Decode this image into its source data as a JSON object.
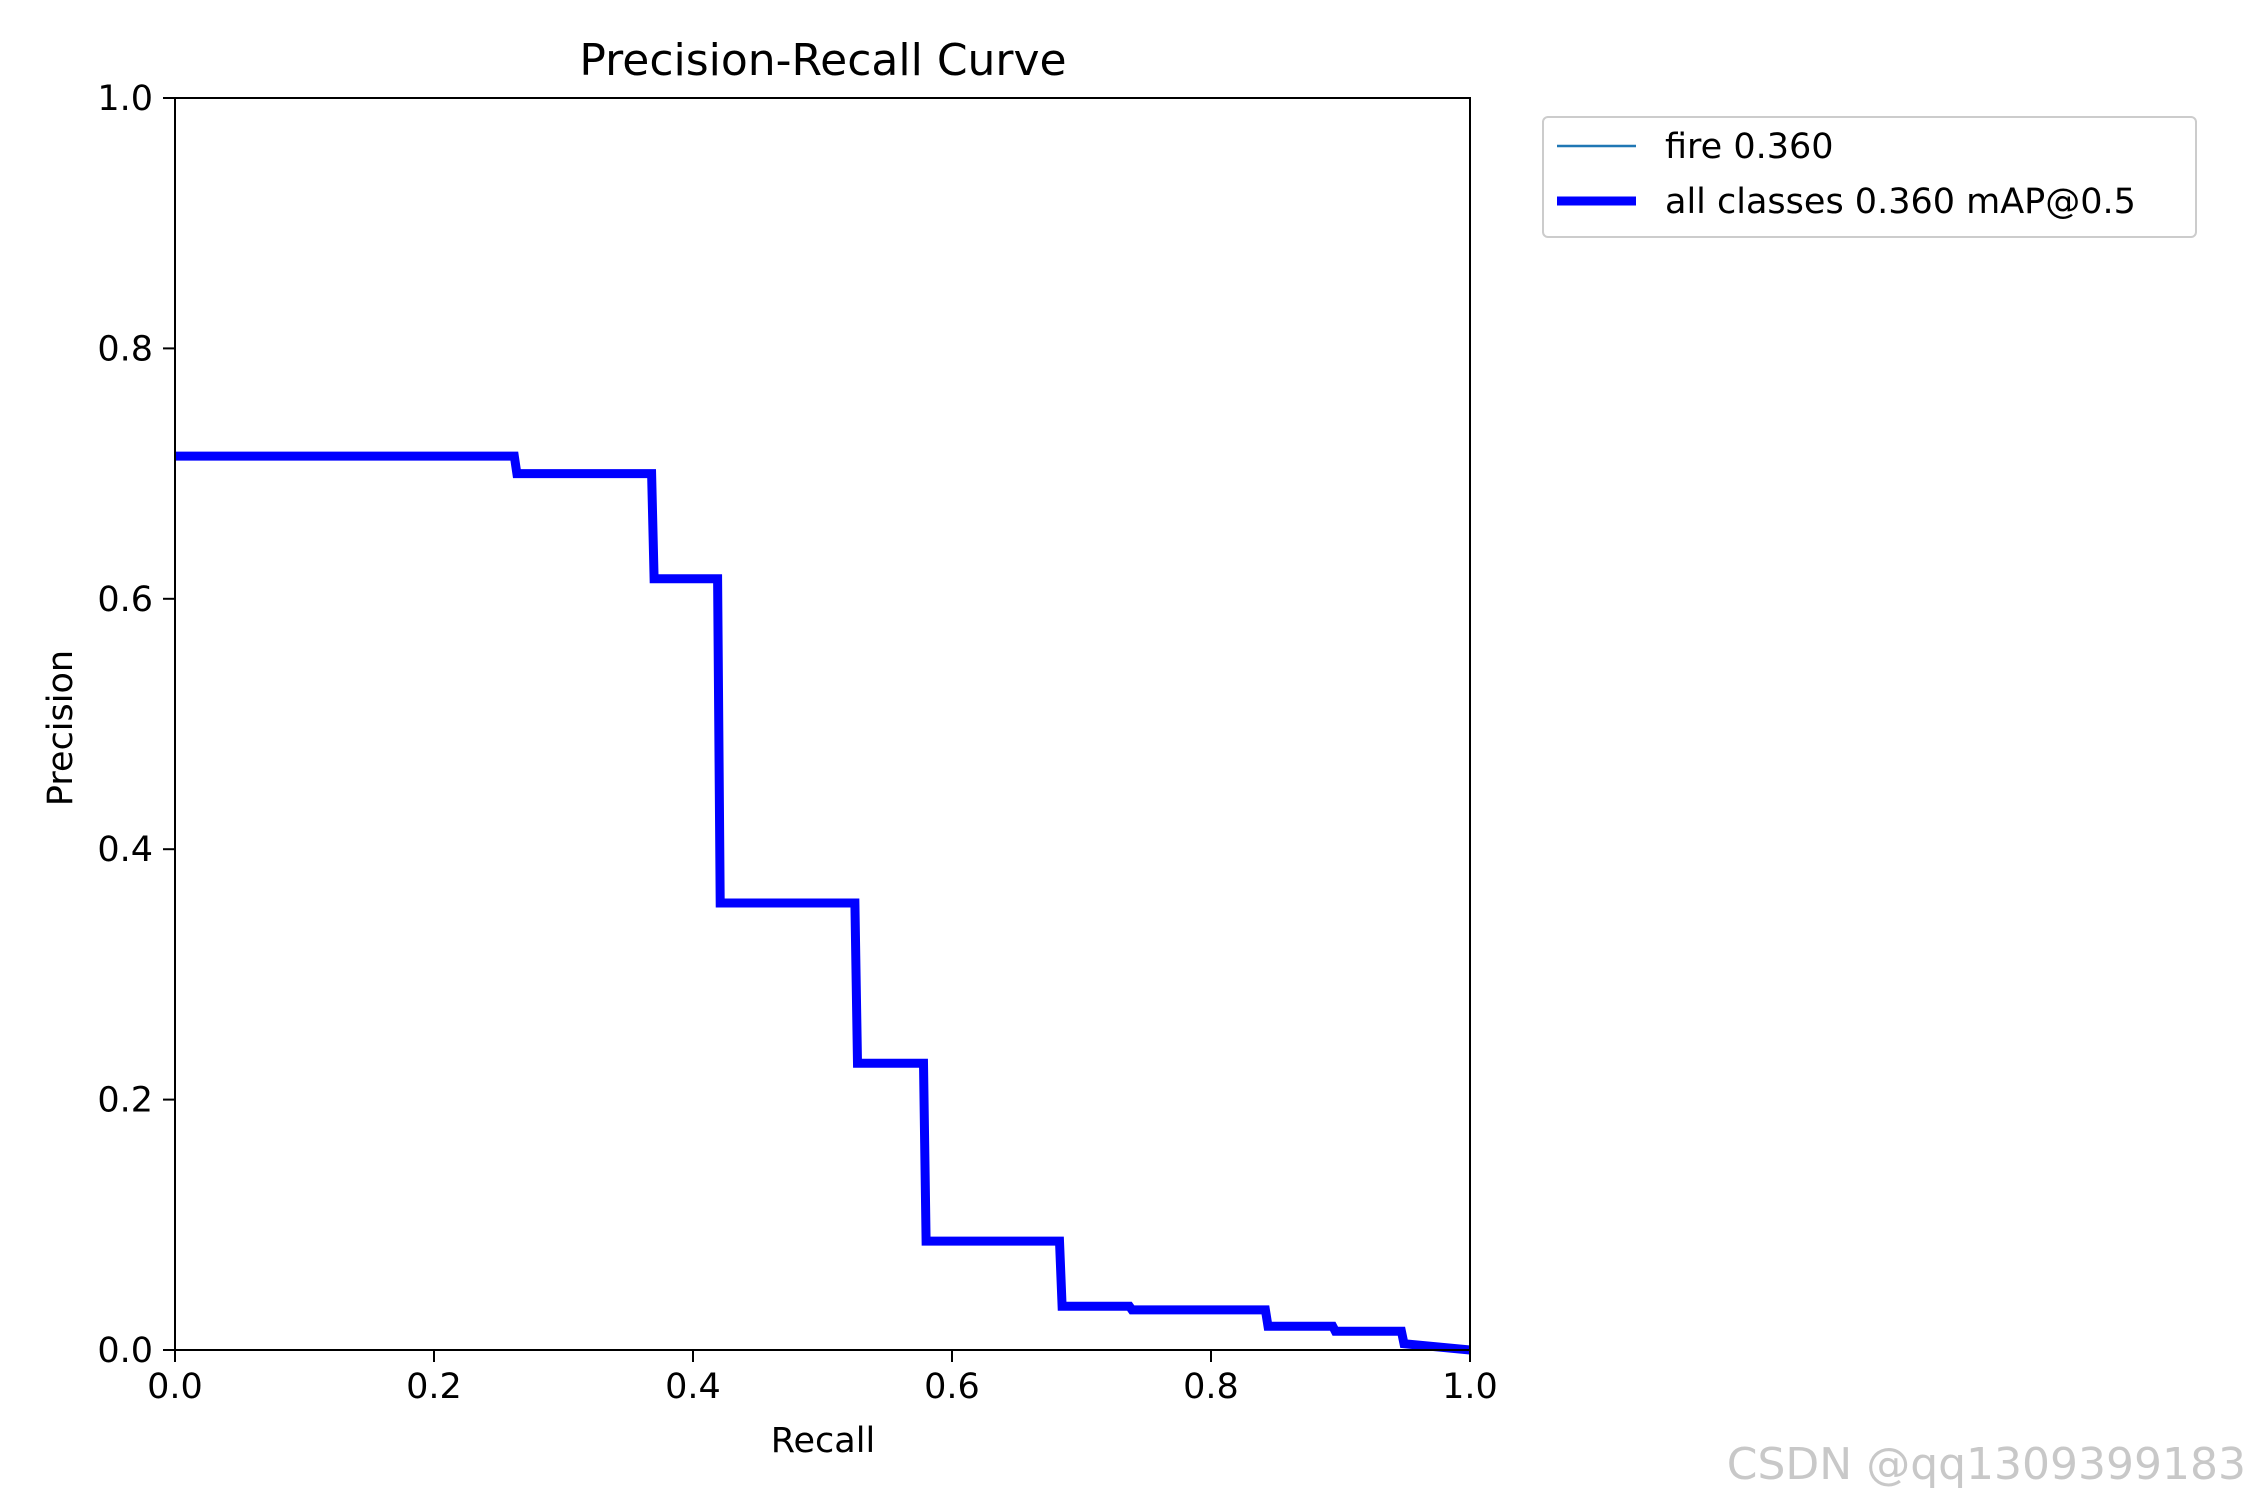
{
  "chart_data": {
    "type": "line",
    "title": "Precision-Recall Curve",
    "xlabel": "Recall",
    "ylabel": "Precision",
    "xlim": [
      0,
      1
    ],
    "ylim": [
      0,
      1
    ],
    "xticks": [
      "0.0",
      "0.2",
      "0.4",
      "0.6",
      "0.8",
      "1.0"
    ],
    "yticks": [
      "0.0",
      "0.2",
      "0.4",
      "0.6",
      "0.8",
      "1.0"
    ],
    "grid": false,
    "legend_position": "outside-top-right",
    "series": [
      {
        "name": "fire 0.360",
        "color": "#1f77b4",
        "points": [
          [
            0.0,
            0.714
          ],
          [
            0.262,
            0.714
          ],
          [
            0.264,
            0.7
          ],
          [
            0.368,
            0.7
          ],
          [
            0.37,
            0.616
          ],
          [
            0.419,
            0.616
          ],
          [
            0.421,
            0.357
          ],
          [
            0.525,
            0.357
          ],
          [
            0.527,
            0.229
          ],
          [
            0.578,
            0.229
          ],
          [
            0.58,
            0.087
          ],
          [
            0.683,
            0.087
          ],
          [
            0.685,
            0.035
          ],
          [
            0.737,
            0.035
          ],
          [
            0.739,
            0.032
          ],
          [
            0.842,
            0.032
          ],
          [
            0.844,
            0.019
          ],
          [
            0.894,
            0.019
          ],
          [
            0.896,
            0.015
          ],
          [
            0.947,
            0.015
          ],
          [
            0.949,
            0.005
          ],
          [
            1.0,
            0.0
          ]
        ]
      },
      {
        "name": "all classes 0.360 mAP@0.5",
        "color": "#0000ff",
        "same_as": "fire 0.360"
      }
    ]
  },
  "watermark": "CSDN @qq1309399183"
}
